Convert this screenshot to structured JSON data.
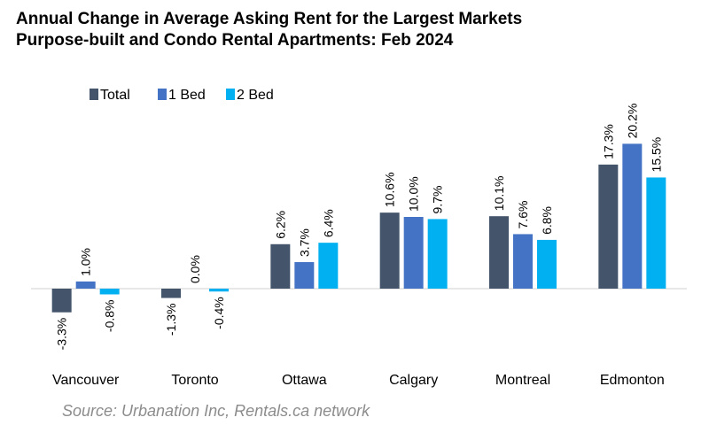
{
  "title": "Annual Change in Average Asking Rent for the Largest Markets",
  "subtitle": "Purpose-built and Condo Rental Apartments: Feb 2024",
  "source": "Source: Urbanation Inc, Rentals.ca network",
  "chart_data": {
    "type": "bar",
    "categories": [
      "Vancouver",
      "Toronto",
      "Ottawa",
      "Calgary",
      "Montreal",
      "Edmonton"
    ],
    "series": [
      {
        "name": "Total",
        "color": "#44546a",
        "values": [
          -3.3,
          -1.3,
          6.2,
          10.6,
          10.1,
          17.3
        ],
        "labels": [
          "-3.3%",
          "-1.3%",
          "6.2%",
          "10.6%",
          "10.1%",
          "17.3%"
        ]
      },
      {
        "name": "1 Bed",
        "color": "#4472c4",
        "values": [
          1.0,
          0.0,
          3.7,
          10.0,
          7.6,
          20.2
        ],
        "labels": [
          "1.0%",
          "0.0%",
          "3.7%",
          "10.0%",
          "7.6%",
          "20.2%"
        ]
      },
      {
        "name": "2 Bed",
        "color": "#00b0f0",
        "values": [
          -0.8,
          -0.4,
          6.4,
          9.7,
          6.8,
          15.5
        ],
        "labels": [
          "-0.8%",
          "-0.4%",
          "6.4%",
          "9.7%",
          "6.8%",
          "15.5%"
        ]
      }
    ],
    "legend_position": "top-left",
    "grid": false,
    "unit": "%"
  }
}
